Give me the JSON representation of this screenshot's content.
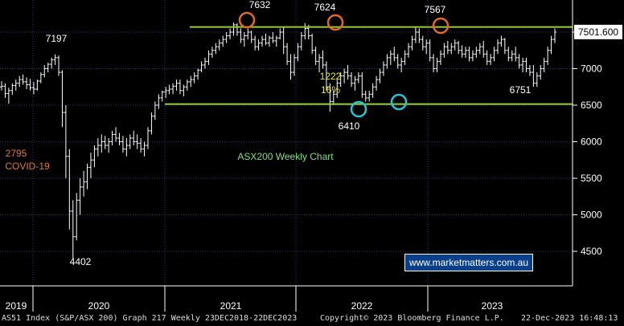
{
  "chart_data": {
    "type": "bar",
    "title": "ASX200 Weekly Chart",
    "ylim": [
      4000,
      7900
    ],
    "y_ticks": [
      4500,
      5000,
      5500,
      6000,
      6500,
      7000,
      7500
    ],
    "x_ticks": [
      "2019",
      "2020",
      "2021",
      "2022",
      "2023"
    ],
    "last_price": "7501.600",
    "series": [
      {
        "values": [
          [
            6750,
            6830,
            6700,
            6760
          ],
          [
            6760,
            6800,
            6600,
            6660
          ],
          [
            6660,
            6740,
            6520,
            6700
          ],
          [
            6700,
            6800,
            6640,
            6770
          ],
          [
            6770,
            6850,
            6700,
            6800
          ],
          [
            6800,
            6900,
            6750,
            6850
          ],
          [
            6850,
            6920,
            6780,
            6820
          ],
          [
            6820,
            6880,
            6720,
            6780
          ],
          [
            6780,
            6860,
            6700,
            6740
          ],
          [
            6740,
            6820,
            6650,
            6720
          ],
          [
            6720,
            6850,
            6700,
            6830
          ],
          [
            6830,
            6950,
            6800,
            6920
          ],
          [
            6920,
            7050,
            6880,
            7000
          ],
          [
            7000,
            7080,
            6950,
            7060
          ],
          [
            7060,
            7150,
            7000,
            7120
          ],
          [
            7120,
            7197,
            7050,
            7150
          ],
          [
            7150,
            7180,
            6900,
            6950
          ],
          [
            6950,
            6980,
            6200,
            6400
          ],
          [
            6400,
            6500,
            5500,
            5800
          ],
          [
            5800,
            5900,
            4800,
            5050
          ],
          [
            5050,
            5200,
            4402,
            4700
          ],
          [
            4700,
            5300,
            4650,
            5200
          ],
          [
            5200,
            5500,
            5000,
            5380
          ],
          [
            5380,
            5600,
            5250,
            5450
          ],
          [
            5450,
            5700,
            5350,
            5650
          ],
          [
            5650,
            5850,
            5500,
            5750
          ],
          [
            5750,
            5950,
            5650,
            5900
          ],
          [
            5900,
            6050,
            5800,
            5950
          ],
          [
            5950,
            6100,
            5850,
            6000
          ],
          [
            6000,
            6080,
            5900,
            5950
          ],
          [
            5950,
            6050,
            5850,
            6000
          ],
          [
            6000,
            6150,
            5950,
            6100
          ],
          [
            6100,
            6200,
            6000,
            6050
          ],
          [
            6050,
            6120,
            5950,
            6000
          ],
          [
            6000,
            6080,
            5850,
            5900
          ],
          [
            5900,
            6050,
            5800,
            5950
          ],
          [
            5950,
            6100,
            5900,
            6050
          ],
          [
            6050,
            6150,
            5950,
            6000
          ],
          [
            6000,
            6100,
            5900,
            5980
          ],
          [
            5980,
            6050,
            5850,
            5900
          ],
          [
            5900,
            6000,
            5800,
            5950
          ],
          [
            5950,
            6200,
            5900,
            6150
          ],
          [
            6150,
            6400,
            6100,
            6350
          ],
          [
            6350,
            6550,
            6300,
            6500
          ],
          [
            6500,
            6650,
            6450,
            6600
          ],
          [
            6600,
            6700,
            6550,
            6680
          ],
          [
            6680,
            6750,
            6600,
            6700
          ],
          [
            6700,
            6780,
            6650,
            6720
          ],
          [
            6720,
            6800,
            6650,
            6760
          ],
          [
            6760,
            6850,
            6700,
            6800
          ],
          [
            6800,
            6850,
            6650,
            6700
          ],
          [
            6700,
            6780,
            6620,
            6750
          ],
          [
            6750,
            6850,
            6700,
            6820
          ],
          [
            6820,
            6900,
            6750,
            6850
          ],
          [
            6850,
            6950,
            6800,
            6900
          ],
          [
            6900,
            7000,
            6850,
            6980
          ],
          [
            6980,
            7100,
            6950,
            7050
          ],
          [
            7050,
            7150,
            7000,
            7100
          ],
          [
            7100,
            7250,
            7050,
            7200
          ],
          [
            7200,
            7300,
            7150,
            7250
          ],
          [
            7250,
            7350,
            7200,
            7300
          ],
          [
            7300,
            7400,
            7250,
            7350
          ],
          [
            7350,
            7450,
            7300,
            7400
          ],
          [
            7400,
            7500,
            7350,
            7450
          ],
          [
            7450,
            7550,
            7400,
            7500
          ],
          [
            7500,
            7632,
            7450,
            7600
          ],
          [
            7600,
            7620,
            7450,
            7500
          ],
          [
            7500,
            7550,
            7350,
            7400
          ],
          [
            7400,
            7500,
            7300,
            7450
          ],
          [
            7450,
            7550,
            7400,
            7500
          ],
          [
            7500,
            7520,
            7350,
            7400
          ],
          [
            7400,
            7450,
            7250,
            7300
          ],
          [
            7300,
            7400,
            7250,
            7350
          ],
          [
            7350,
            7450,
            7300,
            7400
          ],
          [
            7400,
            7480,
            7320,
            7350
          ],
          [
            7350,
            7450,
            7300,
            7420
          ],
          [
            7420,
            7500,
            7350,
            7380
          ],
          [
            7380,
            7450,
            7300,
            7420
          ],
          [
            7420,
            7550,
            7400,
            7500
          ],
          [
            7500,
            7580,
            7200,
            7300
          ],
          [
            7300,
            7350,
            7050,
            7100
          ],
          [
            7100,
            7200,
            6850,
            6950
          ],
          [
            6950,
            7200,
            6900,
            7150
          ],
          [
            7150,
            7350,
            7100,
            7300
          ],
          [
            7300,
            7500,
            7250,
            7450
          ],
          [
            7450,
            7624,
            7400,
            7550
          ],
          [
            7550,
            7600,
            7400,
            7450
          ],
          [
            7450,
            7480,
            7200,
            7250
          ],
          [
            7250,
            7300,
            7050,
            7100
          ],
          [
            7100,
            7200,
            6950,
            7150
          ],
          [
            7150,
            7250,
            7000,
            7050
          ],
          [
            7050,
            7100,
            6700,
            6750
          ],
          [
            6750,
            6800,
            6410,
            6550
          ],
          [
            6550,
            6700,
            6500,
            6650
          ],
          [
            6650,
            6850,
            6600,
            6800
          ],
          [
            6800,
            6950,
            6750,
            6900
          ],
          [
            6900,
            7000,
            6800,
            6950
          ],
          [
            6950,
            7050,
            6850,
            6900
          ],
          [
            6900,
            6950,
            6750,
            6800
          ],
          [
            6800,
            6900,
            6700,
            6850
          ],
          [
            6850,
            6950,
            6800,
            6900
          ],
          [
            6900,
            6950,
            6600,
            6650
          ],
          [
            6650,
            6700,
            6550,
            6600
          ],
          [
            6600,
            6700,
            6550,
            6650
          ],
          [
            6650,
            6800,
            6600,
            6750
          ],
          [
            6750,
            6900,
            6700,
            6850
          ],
          [
            6850,
            7000,
            6800,
            6950
          ],
          [
            6950,
            7100,
            6900,
            7050
          ],
          [
            7050,
            7200,
            7000,
            7150
          ],
          [
            7150,
            7250,
            7050,
            7200
          ],
          [
            7200,
            7300,
            7100,
            7150
          ],
          [
            7150,
            7200,
            7000,
            7050
          ],
          [
            7050,
            7150,
            6950,
            7100
          ],
          [
            7100,
            7250,
            7050,
            7200
          ],
          [
            7200,
            7350,
            7150,
            7300
          ],
          [
            7300,
            7450,
            7250,
            7400
          ],
          [
            7400,
            7567,
            7350,
            7500
          ],
          [
            7500,
            7550,
            7350,
            7400
          ],
          [
            7400,
            7450,
            7250,
            7300
          ],
          [
            7300,
            7400,
            7200,
            7350
          ],
          [
            7350,
            7400,
            7100,
            7150
          ],
          [
            7150,
            7200,
            6950,
            7000
          ],
          [
            7000,
            7150,
            6950,
            7100
          ],
          [
            7100,
            7250,
            7050,
            7200
          ],
          [
            7200,
            7350,
            7150,
            7300
          ],
          [
            7300,
            7380,
            7200,
            7250
          ],
          [
            7250,
            7350,
            7200,
            7300
          ],
          [
            7300,
            7400,
            7250,
            7350
          ],
          [
            7350,
            7380,
            7200,
            7250
          ],
          [
            7250,
            7320,
            7150,
            7200
          ],
          [
            7200,
            7300,
            7150,
            7250
          ],
          [
            7250,
            7300,
            7100,
            7150
          ],
          [
            7150,
            7250,
            7100,
            7200
          ],
          [
            7200,
            7300,
            7150,
            7250
          ],
          [
            7250,
            7350,
            7200,
            7300
          ],
          [
            7300,
            7380,
            7150,
            7200
          ],
          [
            7200,
            7250,
            7050,
            7100
          ],
          [
            7100,
            7200,
            7050,
            7150
          ],
          [
            7150,
            7300,
            7100,
            7250
          ],
          [
            7250,
            7400,
            7200,
            7350
          ],
          [
            7350,
            7450,
            7300,
            7400
          ],
          [
            7400,
            7420,
            7200,
            7250
          ],
          [
            7250,
            7300,
            7100,
            7150
          ],
          [
            7150,
            7250,
            7100,
            7200
          ],
          [
            7200,
            7300,
            7100,
            7150
          ],
          [
            7150,
            7200,
            7000,
            7050
          ],
          [
            7050,
            7150,
            6950,
            7100
          ],
          [
            7100,
            7150,
            6950,
            7000
          ],
          [
            7000,
            7050,
            6900,
            6950
          ],
          [
            6950,
            7050,
            6751,
            6800
          ],
          [
            6800,
            6950,
            6750,
            6900
          ],
          [
            6900,
            7050,
            6850,
            7000
          ],
          [
            7000,
            7150,
            6950,
            7100
          ],
          [
            7100,
            7300,
            7050,
            7250
          ],
          [
            7250,
            7450,
            7200,
            7400
          ],
          [
            7400,
            7550,
            7350,
            7500
          ]
        ]
      }
    ],
    "resistance_level": 7570,
    "support_level": 6515,
    "annotations": [
      {
        "text": "7197",
        "color": "#ffffff"
      },
      {
        "text": "7632",
        "color": "#ffffff"
      },
      {
        "text": "7624",
        "color": "#ffffff"
      },
      {
        "text": "7567",
        "color": "#ffffff"
      },
      {
        "text": "1222",
        "color": "#e8e82a"
      },
      {
        "text": "16%",
        "color": "#e8e82a"
      },
      {
        "text": "6751",
        "color": "#ffffff"
      },
      {
        "text": "6410",
        "color": "#ffffff"
      },
      {
        "text": "4402",
        "color": "#ffffff"
      },
      {
        "text": "2795",
        "color": "#e07a2a"
      },
      {
        "text": "COVID-19",
        "color": "#e07a2a"
      },
      {
        "text": "ASX200 Weekly Chart",
        "color": "#7fe07f"
      }
    ],
    "grid": true,
    "colors": {
      "background": "#000000",
      "grid": "#2a3a6a",
      "bars": "#ffffff",
      "hlines": "#9acd32",
      "tops": "#e06a2a",
      "bottoms": "#29c5d6",
      "axis_text": "#ffffff",
      "watermark_bg": "#0a3f8a"
    }
  },
  "watermark": "www.marketmatters.com.au",
  "footer": {
    "left": "AS51 Index (S&P/ASX 200) Graph 217  Weekly 23DEC2018-22DEC2023",
    "center": "Copyright© 2023 Bloomberg Finance L.P.",
    "right": "22-Dec-2023 16:48:13"
  }
}
